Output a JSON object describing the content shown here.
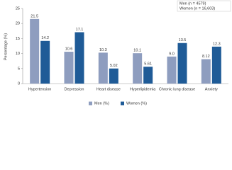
{
  "chart_data": {
    "type": "bar",
    "y_label": "Percentage (%)",
    "annotation": [
      "Men (n = 4579)",
      "Women (n = 16,603)"
    ],
    "categories": [
      "Hypertension",
      "Depression",
      "Heart disease",
      "Hyperlipidemia",
      "Chronic lung disease",
      "Anxiety"
    ],
    "series": [
      {
        "name": "Men (%)",
        "color": "#8e9dbf",
        "values": [
          21.5,
          10.6,
          10.3,
          10.1,
          9.0,
          8.12
        ],
        "value_labels": [
          "21.5",
          "10.6",
          "10.3",
          "10.1",
          "9.0",
          "8.12"
        ]
      },
      {
        "name": "Women (%)",
        "color": "#1f5b97",
        "values": [
          14.2,
          17.1,
          5.02,
          5.61,
          13.5,
          12.3
        ],
        "value_labels": [
          "14.2",
          "17.1",
          "5.02",
          "5.61",
          "13.5",
          "12.3"
        ]
      }
    ],
    "ylim": [
      0,
      25
    ],
    "yticks": [
      0,
      5,
      10,
      15,
      20,
      25
    ]
  }
}
